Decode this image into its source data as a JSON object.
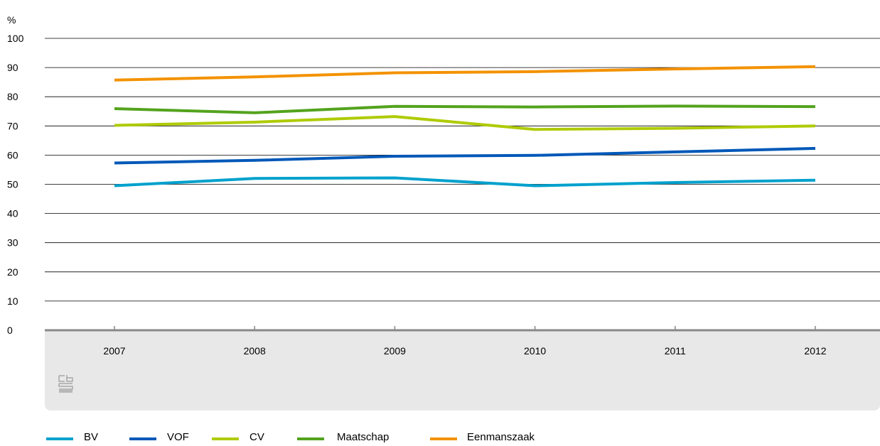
{
  "chart_data": {
    "type": "line",
    "unit_label": "%",
    "x": [
      "2007",
      "2008",
      "2009",
      "2010",
      "2011",
      "2012"
    ],
    "ylim": [
      0,
      100
    ],
    "yticks": [
      "0",
      "10",
      "20",
      "30",
      "40",
      "50",
      "60",
      "70",
      "80",
      "90",
      "100"
    ],
    "grid": true,
    "legend_position": "bottom",
    "series": [
      {
        "name": "BV",
        "color": "#00a1cd",
        "values": [
          49.5,
          52.0,
          52.2,
          49.5,
          50.6,
          51.4
        ]
      },
      {
        "name": "VOF",
        "color": "#0058b8",
        "values": [
          57.3,
          58.2,
          59.6,
          59.9,
          61.1,
          62.3
        ]
      },
      {
        "name": "CV",
        "color": "#afcb05",
        "values": [
          70.2,
          71.3,
          73.2,
          68.8,
          69.2,
          70.0
        ]
      },
      {
        "name": "Maatschap",
        "color": "#53a31d",
        "values": [
          75.9,
          74.5,
          76.7,
          76.5,
          76.8,
          76.6
        ]
      },
      {
        "name": "Eenmanszaak",
        "color": "#f39200",
        "values": [
          85.7,
          86.8,
          88.2,
          88.6,
          89.5,
          90.3
        ]
      }
    ]
  },
  "logo": {
    "name": "cbs-logo",
    "text": "cbs"
  }
}
